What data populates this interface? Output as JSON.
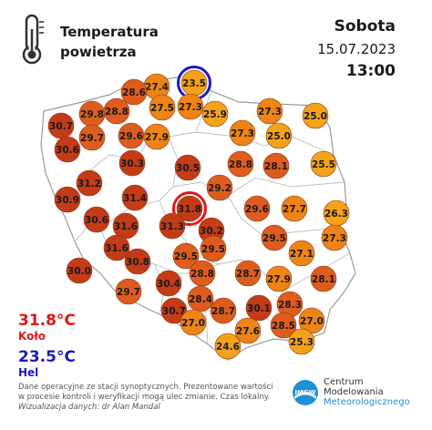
{
  "header": {
    "title_line1": "Temperatura",
    "title_line2": "powietrza",
    "icon": "thermometer-icon",
    "day": "Sobota",
    "date": "15.07.2023",
    "time": "13:00"
  },
  "extremes": {
    "max_value": "31.8°C",
    "max_place": "Koło",
    "min_value": "23.5°C",
    "min_place": "Hel"
  },
  "colors": {
    "hot_dark": "#c43b18",
    "hot_mid": "#df5c1f",
    "warm": "#ee8416",
    "mild": "#f4a21a",
    "max_ring": "#e31616",
    "min_ring": "#1a1ab8",
    "max_text": "#e31616",
    "min_text": "#1a1ab8"
  },
  "stations": [
    {
      "v": 23.5,
      "tier": 4,
      "mark": "min"
    },
    {
      "v": 27.4,
      "tier": 3
    },
    {
      "v": 28.6,
      "tier": 2
    },
    {
      "v": 27.5,
      "tier": 3
    },
    {
      "v": 27.3,
      "tier": 3
    },
    {
      "v": 25.9,
      "tier": 4
    },
    {
      "v": 27.3,
      "tier": 3
    },
    {
      "v": 25.0,
      "tier": 4
    },
    {
      "v": 29.8,
      "tier": 2
    },
    {
      "v": 28.8,
      "tier": 2
    },
    {
      "v": 30.7,
      "tier": 1
    },
    {
      "v": 29.7,
      "tier": 2
    },
    {
      "v": 29.6,
      "tier": 2
    },
    {
      "v": 27.9,
      "tier": 3
    },
    {
      "v": 27.3,
      "tier": 3
    },
    {
      "v": 25.0,
      "tier": 4
    },
    {
      "v": 30.6,
      "tier": 1
    },
    {
      "v": 30.3,
      "tier": 1
    },
    {
      "v": 28.8,
      "tier": 2
    },
    {
      "v": 28.1,
      "tier": 2
    },
    {
      "v": 25.5,
      "tier": 4
    },
    {
      "v": 30.5,
      "tier": 1
    },
    {
      "v": 31.2,
      "tier": 1
    },
    {
      "v": 29.2,
      "tier": 2
    },
    {
      "v": 30.9,
      "tier": 1
    },
    {
      "v": 31.4,
      "tier": 1
    },
    {
      "v": 31.8,
      "tier": 1,
      "mark": "max"
    },
    {
      "v": 29.6,
      "tier": 2
    },
    {
      "v": 27.7,
      "tier": 3
    },
    {
      "v": 26.3,
      "tier": 4
    },
    {
      "v": 30.6,
      "tier": 1
    },
    {
      "v": 31.6,
      "tier": 1
    },
    {
      "v": 31.3,
      "tier": 1
    },
    {
      "v": 30.2,
      "tier": 1
    },
    {
      "v": 29.5,
      "tier": 2
    },
    {
      "v": 27.3,
      "tier": 3
    },
    {
      "v": 31.6,
      "tier": 1
    },
    {
      "v": 29.5,
      "tier": 2
    },
    {
      "v": 29.5,
      "tier": 2
    },
    {
      "v": 27.1,
      "tier": 3
    },
    {
      "v": 30.0,
      "tier": 1
    },
    {
      "v": 30.8,
      "tier": 1
    },
    {
      "v": 28.8,
      "tier": 2
    },
    {
      "v": 28.7,
      "tier": 2
    },
    {
      "v": 27.9,
      "tier": 3
    },
    {
      "v": 28.1,
      "tier": 2
    },
    {
      "v": 29.7,
      "tier": 2
    },
    {
      "v": 30.4,
      "tier": 1
    },
    {
      "v": 28.4,
      "tier": 2
    },
    {
      "v": 28.3,
      "tier": 2
    },
    {
      "v": 30.7,
      "tier": 1
    },
    {
      "v": 28.7,
      "tier": 2
    },
    {
      "v": 30.1,
      "tier": 1
    },
    {
      "v": 27.0,
      "tier": 3
    },
    {
      "v": 27.6,
      "tier": 3
    },
    {
      "v": 28.5,
      "tier": 2
    },
    {
      "v": 27.0,
      "tier": 3
    },
    {
      "v": 24.6,
      "tier": 4
    },
    {
      "v": 25.3,
      "tier": 4
    }
  ],
  "footer": {
    "line1": "Dane operacyjne ze stacji synoptycznych. Prezentowane wartości",
    "line2": "w procesie kontroli i weryfikacji mogą ulec zmianie. Czas lokalny.",
    "line3": "Wizualizacja danych: dr Alan Mandal"
  },
  "logo": {
    "icon": "imgw-logo-icon",
    "mark": "IMGW",
    "line1": "Centrum",
    "line2": "Modelowania",
    "line3": "Meteorologicznego"
  }
}
